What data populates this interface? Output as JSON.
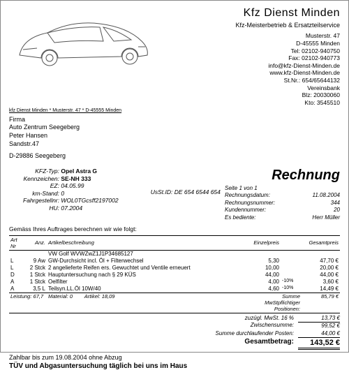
{
  "company": {
    "name": "Kfz Dienst Minden",
    "subtitle": "Kfz-Meisterbetrieb & Ersatzteilservice",
    "street": "Musterstr. 47",
    "city": "D-45555 Minden",
    "tel": "Tel: 02102-940750",
    "fax": "Fax: 02102-940773",
    "email": "info@kfz-Dienst-Minden.de",
    "web": "www.kfz-Dienst-Minden.de",
    "stnr": "St.Nr.: 654/65644132",
    "bank": "Vereinsbank",
    "blz": "Blz: 20030060",
    "kto": "Kto: 3545510"
  },
  "sender_line": "kfz Dienst Minden * Musterstr. 47 * D-45555 Minden",
  "recipient": {
    "l1": "Firma",
    "l2": "Auto Zentrum Seegeberg",
    "l3": "Peter Hansen",
    "l4": "Sandstr.47",
    "l5": "D-29886 Seegeberg"
  },
  "vehicle": {
    "type_lbl": "KFZ-Typ:",
    "type_val": "Opel Astra G",
    "kenn_lbl": "Kennzeichen:",
    "kenn_val": "SE-NH 333",
    "ez_lbl": "EZ:",
    "ez_val": "04.05.99",
    "km_lbl": "km-Stand:",
    "km_val": "0",
    "fg_lbl": "Fahrgestellnr:",
    "fg_val": "WOL0TGcsff2197002",
    "hu_lbl": "HU:",
    "hu_val": "07.2004"
  },
  "ustid": "UsSt.ID: DE 654 6544 654",
  "doc": {
    "title": "Rechnung",
    "page": "Seite 1 von 1",
    "date_lbl": "Rechnungsdatum:",
    "date_val": "11.08.2004",
    "num_lbl": "Rechnungsnummer:",
    "num_val": "344",
    "cust_lbl": "Kundennummer:",
    "cust_val": "20",
    "served_lbl": "Es bediente:",
    "served_val": "Herr Müller"
  },
  "intro": "Gemäss Ihres Auftrages berechnen wir wie folgt:",
  "th": {
    "art": "Art Nr",
    "qty": "Anz.",
    "desc": "Artikelbeschreibung",
    "unit": "Einzelpreis",
    "total": "Gesamtpreis"
  },
  "items": [
    {
      "c": "",
      "q": "",
      "d": "VW Golf WVWZwZ1J1P34685127",
      "u": "",
      "disc": "",
      "t": ""
    },
    {
      "c": "L",
      "q": "9 Aw",
      "d": "GW-Durchsicht incl. Öl + Filterwechsel",
      "u": "5,30",
      "disc": "",
      "t": "47,70 €"
    },
    {
      "c": "L",
      "q": "2 Stck",
      "d": "2 angelieferte Reifen ers. Gewuchtet und Ventile erneuert",
      "u": "10,00",
      "disc": "",
      "t": "20,00 €"
    },
    {
      "c": "D",
      "q": "1 Stck",
      "d": "Hauptuntersuchung nach § 29  KÜS",
      "u": "44,00",
      "disc": "",
      "t": "44,00 €"
    },
    {
      "c": "A",
      "q": "1 Stck",
      "d": "Oelfilter",
      "u": "4,00",
      "disc": "-10%",
      "t": "3,60 €"
    },
    {
      "c": "A",
      "q": "3,5 L",
      "d": "Teilsyn.LL.Öl 10W/40",
      "u": "4,60",
      "disc": "-10%",
      "t": "14,49 €"
    }
  ],
  "leistung": {
    "l": "Leistung: 67,7",
    "m": "Material: 0",
    "a": "Artikel: 18,09"
  },
  "totals": {
    "sub_lbl": "Summe MwStpflichtiger Positionen:",
    "sub_val": "85,79 €",
    "mwst_lbl": "zuzügl. MwSt. 16 %",
    "mwst_val": "13,73 €",
    "zw_lbl": "Zwischensumme:",
    "zw_val": "99,52 €",
    "durch_lbl": "Summe durchlaufender Posten:",
    "durch_val": "44,00 €",
    "grand_lbl": "Gesamtbetrag:",
    "grand_val": "143,52 €"
  },
  "footer1": "Zahlbar bis zum 19.08.2004 ohne Abzug",
  "footer2": "TÜV und Abgasuntersuchung täglich bei uns im Haus"
}
